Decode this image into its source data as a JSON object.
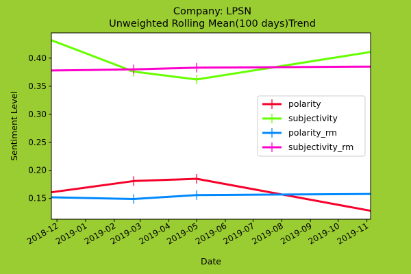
{
  "chart_data": {
    "type": "line",
    "title": "Company: LPSN",
    "subtitle": "Unweighted Rolling Mean(100 days)Trend",
    "xlabel": "Date",
    "ylabel": "Sentiment Level",
    "xlim": [
      "2018-11-25",
      "2019-11-05"
    ],
    "ylim": [
      0.113,
      0.445
    ],
    "x_ticks": [
      "2018-12",
      "2019-01",
      "2019-02",
      "2019-03",
      "2019-04",
      "2019-05",
      "2019-06",
      "2019-07",
      "2019-08",
      "2019-09",
      "2019-10",
      "2019-11"
    ],
    "y_ticks": [
      0.15,
      0.2,
      0.25,
      0.3,
      0.35,
      0.4
    ],
    "grid": false,
    "legend_position": "center-right",
    "background_color": "#9acd32",
    "plot_background": "#ffffff",
    "series": [
      {
        "name": "polarity",
        "color": "#f5002a",
        "x": [
          "2018-11-25",
          "2019-02-22",
          "2019-05-01",
          "2019-11-05"
        ],
        "y": [
          0.161,
          0.181,
          0.185,
          0.128
        ],
        "markers": [
          1,
          2
        ]
      },
      {
        "name": "subjectivity",
        "color": "#66ff00",
        "x": [
          "2018-11-25",
          "2019-02-22",
          "2019-05-01",
          "2019-11-05"
        ],
        "y": [
          0.432,
          0.376,
          0.362,
          0.411
        ],
        "markers": [
          1,
          2
        ]
      },
      {
        "name": "polarity_rm",
        "color": "#0088ff",
        "x": [
          "2018-11-25",
          "2019-02-22",
          "2019-05-01",
          "2019-11-05"
        ],
        "y": [
          0.152,
          0.149,
          0.156,
          0.158
        ],
        "markers": [
          1,
          2
        ]
      },
      {
        "name": "subjectivity_rm",
        "color": "#ff00cc",
        "x": [
          "2018-11-25",
          "2019-02-22",
          "2019-05-01",
          "2019-11-05"
        ],
        "y": [
          0.378,
          0.38,
          0.383,
          0.385
        ],
        "markers": [
          1,
          2
        ]
      }
    ]
  }
}
